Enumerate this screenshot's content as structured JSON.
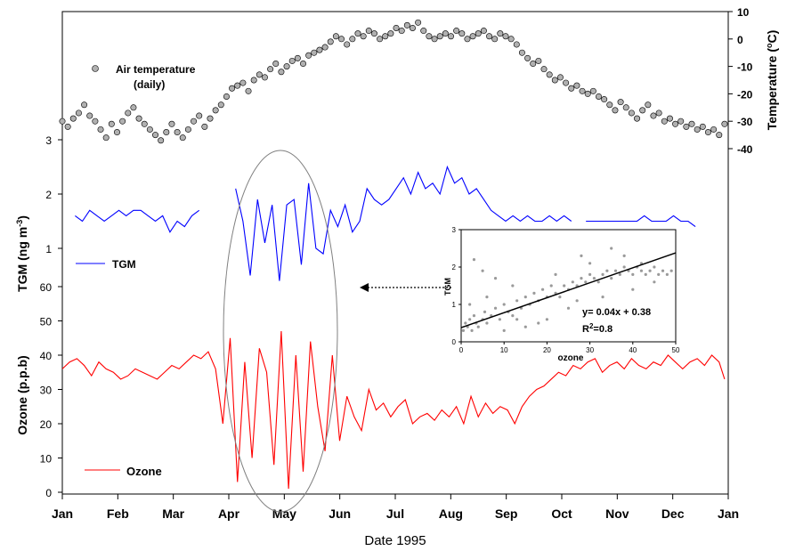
{
  "chart_data": {
    "type": "line",
    "xlabel": "Date 1995",
    "months": [
      "Jan",
      "Feb",
      "Mar",
      "Apr",
      "May",
      "Jun",
      "Jul",
      "Aug",
      "Sep",
      "Oct",
      "Nov",
      "Dec",
      "Jan"
    ],
    "temperature": {
      "ylabel": "Temperature (°C)",
      "ylabel_prefix": "Temperature (",
      "ylabel_sup": "o",
      "ylabel_suffix": "C)",
      "ylim": [
        -40,
        10
      ],
      "ticks": [
        10,
        0,
        -10,
        -20,
        -30,
        -40
      ],
      "legend": "Air temperature",
      "legend2": "(daily)",
      "color": "#b0b0b0",
      "days": [
        1,
        4,
        7,
        10,
        13,
        16,
        19,
        22,
        25,
        28,
        31,
        34,
        37,
        40,
        43,
        46,
        49,
        52,
        55,
        58,
        61,
        64,
        67,
        70,
        73,
        76,
        79,
        82,
        85,
        88,
        91,
        94,
        97,
        100,
        103,
        106,
        109,
        112,
        115,
        118,
        121,
        124,
        127,
        130,
        133,
        136,
        139,
        142,
        145,
        148,
        151,
        154,
        157,
        160,
        163,
        166,
        169,
        172,
        175,
        178,
        181,
        184,
        187,
        190,
        193,
        196,
        199,
        202,
        205,
        208,
        211,
        214,
        217,
        220,
        223,
        226,
        229,
        232,
        235,
        238,
        241,
        244,
        247,
        250,
        253,
        256,
        259,
        262,
        265,
        268,
        271,
        274,
        277,
        280,
        283,
        286,
        289,
        292,
        295,
        298,
        301,
        304,
        307,
        310,
        313,
        316,
        319,
        322,
        325,
        328,
        331,
        334,
        337,
        340,
        343,
        346,
        349,
        352,
        355,
        358,
        361,
        364
      ],
      "values": [
        -30,
        -32,
        -29,
        -27,
        -24,
        -28,
        -30,
        -33,
        -36,
        -31,
        -34,
        -30,
        -27,
        -25,
        -29,
        -31,
        -33,
        -35,
        -37,
        -34,
        -31,
        -34,
        -36,
        -33,
        -30,
        -28,
        -32,
        -29,
        -26,
        -24,
        -21,
        -18,
        -17,
        -16,
        -19,
        -15,
        -13,
        -14,
        -11,
        -9,
        -12,
        -10,
        -8,
        -7,
        -9,
        -6,
        -5,
        -4,
        -3,
        -1,
        1,
        0,
        -2,
        0,
        2,
        1,
        3,
        2,
        0,
        1,
        2,
        4,
        3,
        5,
        4,
        6,
        3,
        1,
        0,
        1,
        2,
        1,
        3,
        2,
        0,
        1,
        2,
        3,
        1,
        0,
        2,
        1,
        0,
        -2,
        -5,
        -7,
        -9,
        -8,
        -11,
        -13,
        -15,
        -14,
        -16,
        -18,
        -17,
        -19,
        -20,
        -19,
        -21,
        -22,
        -24,
        -26,
        -23,
        -25,
        -27,
        -29,
        -26,
        -24,
        -28,
        -27,
        -30,
        -29,
        -31,
        -30,
        -32,
        -31,
        -33,
        -32,
        -34,
        -33,
        -35,
        -31
      ]
    },
    "tgm": {
      "ylabel": "TGM (ng m",
      "ylabel_sup": "-3",
      "ylabel_suffix": ")",
      "ylim": [
        0,
        3
      ],
      "ticks": [
        3,
        2,
        1
      ],
      "legend": "TGM",
      "color": "#0000ff",
      "days": [
        8,
        12,
        16,
        20,
        24,
        28,
        32,
        36,
        40,
        44,
        48,
        52,
        56,
        60,
        64,
        68,
        72,
        76,
        80,
        84,
        88,
        92,
        96,
        100,
        104,
        108,
        112,
        116,
        120,
        124,
        128,
        132,
        136,
        140,
        144,
        148,
        152,
        156,
        160,
        164,
        168,
        172,
        176,
        180,
        184,
        188,
        192,
        196,
        200,
        204,
        208,
        212,
        216,
        220,
        224,
        228,
        232,
        236,
        240,
        244,
        248,
        252,
        256,
        260,
        264,
        268,
        272,
        276,
        280,
        284,
        288,
        292,
        296,
        300,
        304,
        308,
        312,
        316,
        320,
        324,
        328,
        332,
        336,
        340,
        344,
        348,
        352,
        356
      ],
      "values": [
        1.6,
        1.5,
        1.7,
        1.6,
        1.5,
        1.6,
        1.7,
        1.6,
        1.7,
        1.7,
        1.6,
        1.5,
        1.6,
        1.3,
        1.5,
        1.4,
        1.6,
        1.7,
        null,
        null,
        null,
        null,
        2.1,
        1.5,
        0.5,
        1.9,
        1.1,
        1.8,
        0.4,
        1.8,
        1.9,
        0.7,
        2.2,
        1.0,
        0.9,
        1.7,
        1.4,
        1.8,
        1.3,
        1.5,
        2.1,
        1.9,
        1.8,
        1.9,
        2.1,
        2.3,
        2.0,
        2.4,
        2.1,
        2.2,
        2.0,
        2.5,
        2.2,
        2.3,
        2.0,
        2.1,
        1.9,
        1.7,
        1.6,
        1.5,
        1.6,
        1.5,
        1.6,
        1.5,
        1.5,
        1.6,
        1.5,
        1.6,
        1.5,
        null,
        1.5,
        1.5,
        1.5,
        1.5,
        1.5,
        1.5,
        1.5,
        1.5,
        1.6,
        1.5,
        1.5,
        1.5,
        1.6,
        1.5,
        1.5,
        1.4,
        null,
        null
      ]
    },
    "ozone": {
      "ylabel": "Ozone (p.p.b)",
      "ylim": [
        0,
        60
      ],
      "ticks": [
        60,
        50,
        40,
        30,
        20,
        10,
        0
      ],
      "legend": "Ozone",
      "color": "#ff0000",
      "days": [
        1,
        5,
        9,
        13,
        17,
        21,
        25,
        29,
        33,
        37,
        41,
        45,
        49,
        53,
        57,
        61,
        65,
        69,
        73,
        77,
        81,
        85,
        89,
        93,
        97,
        101,
        105,
        109,
        113,
        117,
        121,
        125,
        129,
        133,
        137,
        141,
        145,
        149,
        153,
        157,
        161,
        165,
        169,
        173,
        177,
        181,
        185,
        189,
        193,
        197,
        201,
        205,
        209,
        213,
        217,
        221,
        225,
        229,
        233,
        237,
        241,
        245,
        249,
        253,
        257,
        261,
        265,
        269,
        273,
        277,
        281,
        285,
        289,
        293,
        297,
        301,
        305,
        309,
        313,
        317,
        321,
        325,
        329,
        333,
        337,
        341,
        345,
        349,
        353,
        357,
        361,
        364
      ],
      "values": [
        36,
        38,
        39,
        37,
        34,
        38,
        36,
        35,
        33,
        34,
        36,
        35,
        34,
        33,
        35,
        37,
        36,
        38,
        40,
        39,
        41,
        36,
        20,
        45,
        3,
        38,
        10,
        42,
        35,
        8,
        47,
        1,
        40,
        6,
        44,
        25,
        12,
        40,
        15,
        28,
        22,
        18,
        30,
        24,
        26,
        22,
        25,
        27,
        20,
        22,
        23,
        21,
        24,
        22,
        25,
        20,
        28,
        22,
        26,
        23,
        25,
        24,
        20,
        25,
        28,
        30,
        31,
        33,
        35,
        34,
        37,
        36,
        38,
        39,
        35,
        37,
        38,
        36,
        39,
        37,
        36,
        38,
        37,
        40,
        38,
        36,
        38,
        39,
        37,
        40,
        38,
        33
      ]
    },
    "inset": {
      "type": "scatter",
      "xlabel": "ozone",
      "ylabel": "TGM",
      "xlim": [
        0,
        50
      ],
      "ylim": [
        0,
        3
      ],
      "xticks": [
        0,
        10,
        20,
        30,
        40,
        50
      ],
      "yticks": [
        0,
        1,
        2,
        3
      ],
      "equation": "y= 0.04x + 0.38",
      "r2_prefix": "R",
      "r2_sup": "2",
      "r2_suffix": "=0.8",
      "fit": {
        "slope": 0.04,
        "intercept": 0.38
      },
      "points": [
        [
          0.5,
          0.3
        ],
        [
          1,
          0.5
        ],
        [
          1.5,
          0.4
        ],
        [
          2,
          0.6
        ],
        [
          2.5,
          0.3
        ],
        [
          3,
          0.7
        ],
        [
          3.5,
          0.5
        ],
        [
          4,
          0.4
        ],
        [
          5,
          0.6
        ],
        [
          5.5,
          0.8
        ],
        [
          6,
          0.5
        ],
        [
          7,
          0.7
        ],
        [
          8,
          0.9
        ],
        [
          9,
          0.6
        ],
        [
          10,
          1.0
        ],
        [
          11,
          0.8
        ],
        [
          12,
          0.7
        ],
        [
          13,
          1.1
        ],
        [
          14,
          0.9
        ],
        [
          15,
          1.2
        ],
        [
          16,
          1.0
        ],
        [
          17,
          1.3
        ],
        [
          18,
          1.1
        ],
        [
          19,
          1.4
        ],
        [
          20,
          1.2
        ],
        [
          21,
          1.5
        ],
        [
          22,
          1.3
        ],
        [
          23,
          1.2
        ],
        [
          24,
          1.5
        ],
        [
          25,
          1.4
        ],
        [
          26,
          1.6
        ],
        [
          27,
          1.5
        ],
        [
          28,
          1.7
        ],
        [
          29,
          1.6
        ],
        [
          30,
          1.8
        ],
        [
          31,
          1.7
        ],
        [
          32,
          1.6
        ],
        [
          33,
          1.8
        ],
        [
          34,
          1.9
        ],
        [
          35,
          1.7
        ],
        [
          36,
          1.9
        ],
        [
          37,
          1.8
        ],
        [
          38,
          2.0
        ],
        [
          39,
          1.9
        ],
        [
          40,
          1.8
        ],
        [
          41,
          2.0
        ],
        [
          42,
          1.9
        ],
        [
          43,
          1.8
        ],
        [
          44,
          1.9
        ],
        [
          45,
          2.0
        ],
        [
          46,
          1.8
        ],
        [
          47,
          1.9
        ],
        [
          48,
          1.8
        ],
        [
          49,
          1.9
        ],
        [
          3,
          2.2
        ],
        [
          5,
          1.9
        ],
        [
          8,
          1.7
        ],
        [
          12,
          1.5
        ],
        [
          20,
          0.6
        ],
        [
          28,
          2.3
        ],
        [
          35,
          2.5
        ],
        [
          15,
          0.4
        ],
        [
          25,
          0.9
        ],
        [
          33,
          1.2
        ],
        [
          40,
          1.4
        ],
        [
          22,
          1.8
        ],
        [
          10,
          0.3
        ],
        [
          18,
          0.5
        ],
        [
          30,
          2.1
        ],
        [
          45,
          1.6
        ],
        [
          6,
          1.2
        ],
        [
          2,
          1.0
        ],
        [
          38,
          2.3
        ],
        [
          42,
          2.1
        ],
        [
          27,
          1.1
        ],
        [
          13,
          0.6
        ]
      ]
    }
  }
}
